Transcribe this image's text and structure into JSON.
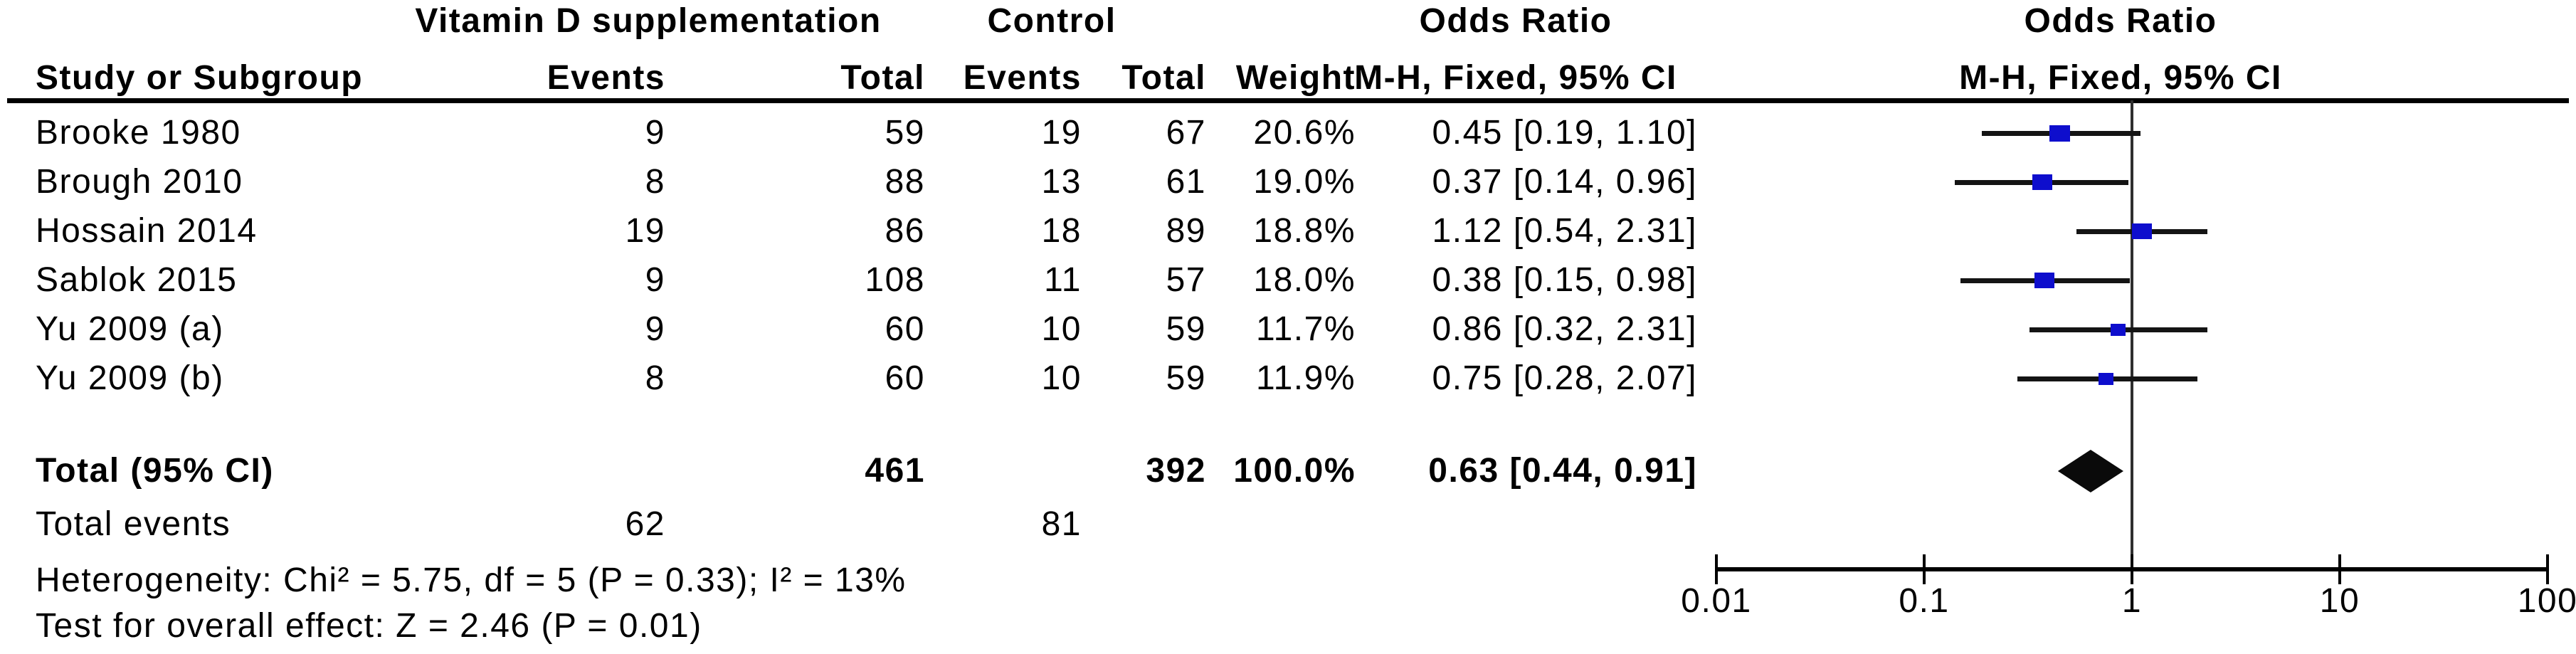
{
  "header": {
    "group1": "Vitamin D supplementation",
    "group2": "Control",
    "study": "Study or Subgroup",
    "events1": "Events",
    "total1": "Total",
    "events2": "Events",
    "total2": "Total",
    "weight": "Weight",
    "or_col_title": "Odds Ratio",
    "or_col_sub": "M-H, Fixed, 95% CI",
    "plot_col_title": "Odds Ratio",
    "plot_col_sub": "M-H, Fixed, 95% CI"
  },
  "chart_data": {
    "type": "forest",
    "effect_measure": "Odds Ratio",
    "method": "M-H, Fixed, 95% CI",
    "x_scale": "log",
    "x_range": [
      0.01,
      100
    ],
    "x_ticks": [
      "0.01",
      "0.1",
      "1",
      "10",
      "100"
    ],
    "no_effect_x": 1,
    "marker_color": "#0e0ecd",
    "line_color": "#141414",
    "diamond_color": "#0a0a0a",
    "studies": [
      {
        "name": "Brooke 1980",
        "events_treat": "9",
        "total_treat": "59",
        "events_ctrl": "19",
        "total_ctrl": "67",
        "weight": "20.6%",
        "weight_pct": 20.6,
        "or": 0.45,
        "ci_low": 0.19,
        "ci_high": 1.1,
        "ci_label": "0.45 [0.19, 1.10]"
      },
      {
        "name": "Brough 2010",
        "events_treat": "8",
        "total_treat": "88",
        "events_ctrl": "13",
        "total_ctrl": "61",
        "weight": "19.0%",
        "weight_pct": 19.0,
        "or": 0.37,
        "ci_low": 0.14,
        "ci_high": 0.96,
        "ci_label": "0.37 [0.14, 0.96]"
      },
      {
        "name": "Hossain 2014",
        "events_treat": "19",
        "total_treat": "86",
        "events_ctrl": "18",
        "total_ctrl": "89",
        "weight": "18.8%",
        "weight_pct": 18.8,
        "or": 1.12,
        "ci_low": 0.54,
        "ci_high": 2.31,
        "ci_label": "1.12 [0.54, 2.31]"
      },
      {
        "name": "Sablok 2015",
        "events_treat": "9",
        "total_treat": "108",
        "events_ctrl": "11",
        "total_ctrl": "57",
        "weight": "18.0%",
        "weight_pct": 18.0,
        "or": 0.38,
        "ci_low": 0.15,
        "ci_high": 0.98,
        "ci_label": "0.38 [0.15, 0.98]"
      },
      {
        "name": "Yu 2009 (a)",
        "events_treat": "9",
        "total_treat": "60",
        "events_ctrl": "10",
        "total_ctrl": "59",
        "weight": "11.7%",
        "weight_pct": 11.7,
        "or": 0.86,
        "ci_low": 0.32,
        "ci_high": 2.31,
        "ci_label": "0.86 [0.32, 2.31]"
      },
      {
        "name": "Yu 2009 (b)",
        "events_treat": "8",
        "total_treat": "60",
        "events_ctrl": "10",
        "total_ctrl": "59",
        "weight": "11.9%",
        "weight_pct": 11.9,
        "or": 0.75,
        "ci_low": 0.28,
        "ci_high": 2.07,
        "ci_label": "0.75 [0.28, 2.07]"
      }
    ],
    "total": {
      "label": "Total (95% CI)",
      "total_treat": "461",
      "total_ctrl": "392",
      "weight": "100.0%",
      "or": 0.63,
      "ci_low": 0.44,
      "ci_high": 0.91,
      "ci_label": "0.63 [0.44, 0.91]"
    },
    "total_events": {
      "label": "Total events",
      "treat": "62",
      "ctrl": "81"
    },
    "heterogeneity": "Heterogeneity: Chi² = 5.75, df = 5 (P = 0.33); I² = 13%",
    "overall_effect": "Test for overall effect: Z = 2.46 (P = 0.01)"
  }
}
